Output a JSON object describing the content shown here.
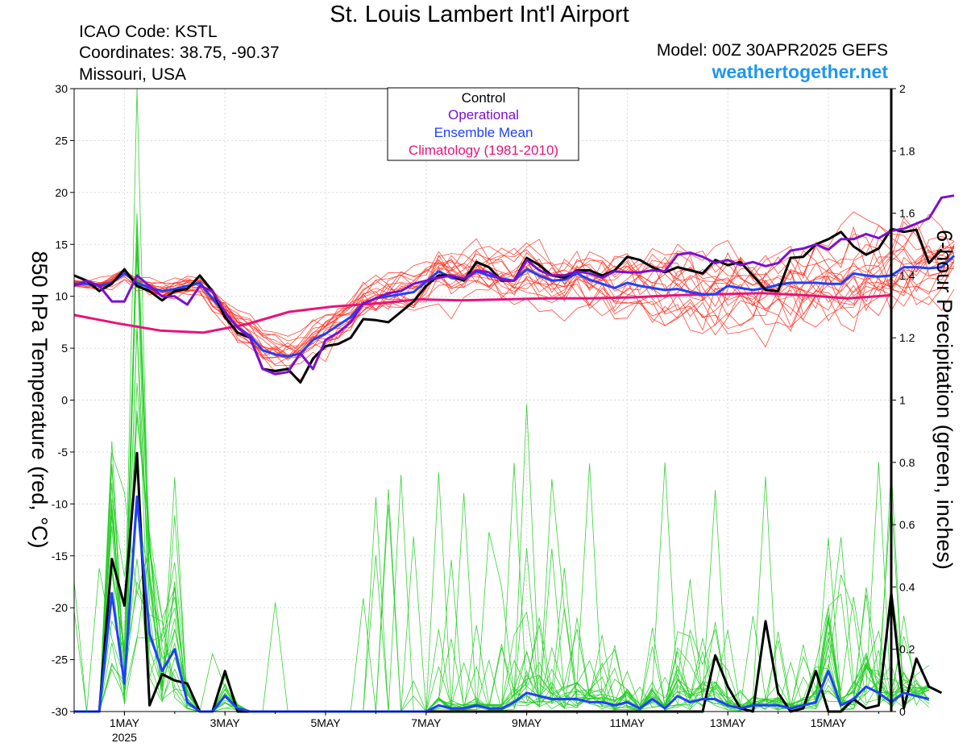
{
  "header": {
    "title": "St. Louis Lambert Int'l Airport",
    "icao": "ICAO Code: KSTL",
    "coordinates": "Coordinates: 38.75, -90.37",
    "location": "Missouri, USA",
    "model": "Model: 00Z 30APR2025 GEFS",
    "website": "weathertogether.net"
  },
  "colors": {
    "members_temp": "#ff2a1a",
    "members_precip": "#22cc22",
    "control": "#000000",
    "operational": "#7a10d0",
    "ensemble_mean": "#2040ff",
    "climatology": "#e8137a",
    "website": "#1e96f0"
  },
  "chart_data": {
    "type": "line",
    "title": "St. Louis Lambert Int'l Airport",
    "ylabel_left": "850 hPa Temperature (red, °C)",
    "ylabel_right": "6-hour Precipitation (green, inches)",
    "xlim": [
      0,
      16.25
    ],
    "ylim_left": [
      -30,
      30
    ],
    "ylim_right": [
      0,
      2
    ],
    "left_ticks": [
      30,
      25,
      20,
      15,
      10,
      5,
      0,
      -5,
      -10,
      -15,
      -20,
      -25,
      -30
    ],
    "right_ticks": [
      "2",
      "1.8",
      "1.6",
      "1.4",
      "1.2",
      "1",
      "0.8",
      "0.6",
      "0.4",
      "0.2",
      "0"
    ],
    "x_ticks": [
      {
        "x": 1,
        "label": "1MAY",
        "sub": "2025"
      },
      {
        "x": 3,
        "label": "3MAY",
        "sub": ""
      },
      {
        "x": 5,
        "label": "5MAY",
        "sub": ""
      },
      {
        "x": 7,
        "label": "7MAY",
        "sub": ""
      },
      {
        "x": 9,
        "label": "9MAY",
        "sub": ""
      },
      {
        "x": 11,
        "label": "11MAY",
        "sub": ""
      },
      {
        "x": 13,
        "label": "13MAY",
        "sub": ""
      },
      {
        "x": 15,
        "label": "15MAY",
        "sub": ""
      }
    ],
    "legend": [
      "Control",
      "Operational",
      "Ensemble Mean",
      "Climatology (1981-2010)"
    ],
    "legend_position": "top-center",
    "grid": true,
    "x_units": "days from 00Z 30APR2025 (6-hourly steps)",
    "series": [
      {
        "name": "Control",
        "axis": "temp",
        "values": [
          12,
          11.5,
          10.5,
          11.2,
          12.6,
          11,
          10.5,
          9.6,
          10.5,
          10.7,
          12,
          10.5,
          8,
          6.5,
          6,
          3,
          2.8,
          3,
          1.7,
          4,
          5.2,
          5.4,
          6,
          7.8,
          7.7,
          7.5,
          8.5,
          9.5,
          11,
          12,
          12,
          11.5,
          13.3,
          12.8,
          11.5,
          11.5,
          13.7,
          13,
          12,
          11.8,
          12.5,
          12.5,
          12,
          12.5,
          13.8,
          13.5,
          12.8,
          12.3,
          12.8,
          12.5,
          12.2,
          13.5,
          13,
          13.3,
          12,
          10.6,
          10.5,
          13.7,
          13.8,
          15,
          15.5,
          16.2,
          14.8,
          14,
          14.6,
          16.5,
          16.2,
          16.4,
          13.2,
          14.5
        ]
      },
      {
        "name": "Operational",
        "axis": "temp",
        "values": [
          11,
          11.5,
          11,
          9.5,
          9.5,
          12,
          11,
          10,
          10,
          9.2,
          11,
          10.5,
          8.5,
          7,
          6,
          3,
          2.5,
          2.7,
          4.5,
          3,
          5.8,
          6.5,
          7.5,
          9.3,
          9.8,
          10.3,
          10.5,
          11.2,
          11.5,
          11.8,
          12,
          11.7,
          12.5,
          12.3,
          11.6,
          11.5,
          13.5,
          12.5,
          12,
          12,
          12.4,
          12.2,
          11.8,
          12.4,
          12.3,
          12.3,
          12.5,
          12.4,
          14,
          14.2,
          13.8,
          13.2,
          13.5,
          13,
          13.3,
          12.9,
          13.2,
          14.4,
          14.6,
          15,
          14.5,
          15.5,
          15.5,
          16,
          15.6,
          16.3,
          16.5,
          17,
          17.5,
          19.5,
          19.7
        ]
      },
      {
        "name": "Ensemble Mean",
        "axis": "temp",
        "values": [
          11.2,
          11.2,
          11.0,
          11.3,
          12.2,
          11.3,
          10.8,
          10.5,
          10.7,
          11.0,
          11.3,
          9.8,
          8.4,
          7.0,
          6.2,
          4.8,
          4.4,
          4.2,
          4.5,
          5.8,
          6.4,
          7.2,
          8.0,
          9.3,
          9.8,
          10.0,
          10.2,
          10.4,
          11.4,
          12.4,
          11.8,
          11.6,
          12.4,
          12.0,
          11.7,
          11.5,
          12.6,
          12.0,
          11.5,
          11.6,
          12.2,
          11.6,
          11.2,
          10.8,
          11.3,
          11.0,
          10.8,
          10.6,
          10.7,
          10.4,
          10.2,
          10.2,
          11.0,
          10.8,
          10.6,
          10.8,
          11.1,
          11.3,
          11.3,
          11.3,
          11.2,
          11.2,
          12.2,
          12.0,
          11.9,
          12.0,
          12.8,
          12.8,
          12.7,
          12.8,
          13.9
        ]
      },
      {
        "name": "Climatology (1981-2010)",
        "axis": "temp",
        "values": [
          8.2,
          7.4,
          6.7,
          6.5,
          7.3,
          8.5,
          9.0,
          9.3,
          9.7,
          9.6,
          9.7,
          9.8,
          9.8,
          9.9,
          10.1,
          10.2,
          10.3,
          10.1,
          9.8,
          10.1
        ]
      },
      {
        "name": "Control (precip)",
        "axis": "precip",
        "values": [
          0,
          0,
          0,
          0.49,
          0.34,
          0.83,
          0.02,
          0.12,
          0.1,
          0.09,
          0,
          0,
          0.13,
          0,
          0,
          0,
          0,
          0,
          0,
          0,
          0,
          0,
          0,
          0,
          0,
          0,
          0,
          0,
          0,
          0,
          0,
          0,
          0,
          0,
          0,
          0,
          0,
          0,
          0,
          0,
          0,
          0,
          0,
          0,
          0,
          0,
          0,
          0,
          0,
          0,
          0,
          0.18,
          0.08,
          0.01,
          0,
          0.29,
          0.06,
          0,
          0.01,
          0.13,
          0,
          0,
          0.04,
          0.01,
          0.02,
          0.38,
          0.01,
          0.17,
          0.08,
          0.06
        ]
      },
      {
        "name": "Ensemble Mean (precip)",
        "axis": "precip",
        "values": [
          0,
          0,
          0,
          0.38,
          0.09,
          0.69,
          0.25,
          0.13,
          0.2,
          0.03,
          0,
          0,
          0.05,
          0.01,
          0,
          0,
          0,
          0,
          0,
          0,
          0,
          0,
          0,
          0,
          0,
          0,
          0,
          0,
          0,
          0.02,
          0.01,
          0.01,
          0.02,
          0.01,
          0.01,
          0.03,
          0.06,
          0.05,
          0.04,
          0.04,
          0.04,
          0.03,
          0.03,
          0.02,
          0.03,
          0.01,
          0.04,
          0.01,
          0.05,
          0.03,
          0.04,
          0.04,
          0.02,
          0.01,
          0.02,
          0.02,
          0.02,
          0.01,
          0.02,
          0.03,
          0.13,
          0.02,
          0.04,
          0.08,
          0.06,
          0.03,
          0.06,
          0.05,
          0.04
        ]
      }
    ]
  }
}
